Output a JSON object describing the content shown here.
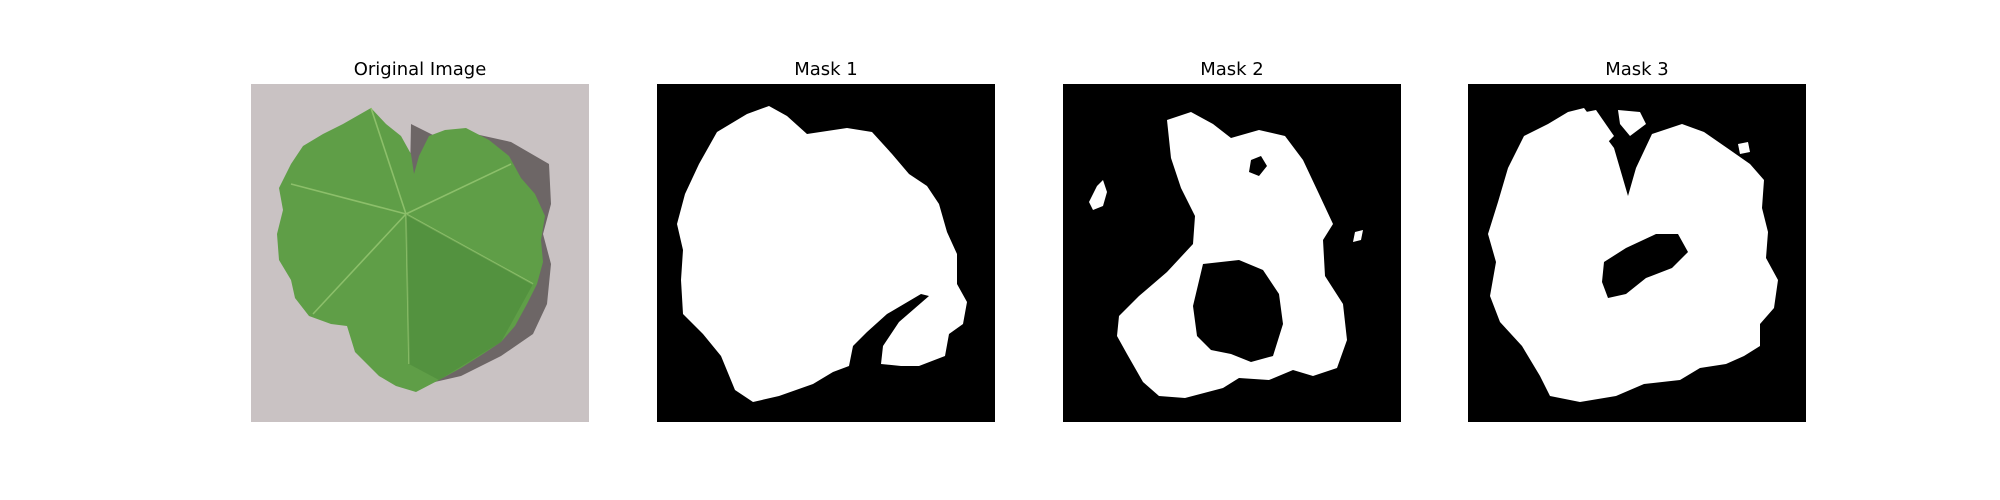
{
  "figure": {
    "panels": [
      {
        "title": "Original Image"
      },
      {
        "title": "Mask 1"
      },
      {
        "title": "Mask 2"
      },
      {
        "title": "Mask 3"
      }
    ]
  },
  "colors": {
    "background_gray": "#c9c2c3",
    "leaf_green": "#5f9e47",
    "leaf_dark": "#3f7a30",
    "leaf_shadow": "#4d4747",
    "mask_black": "#000000",
    "mask_white": "#ffffff"
  }
}
